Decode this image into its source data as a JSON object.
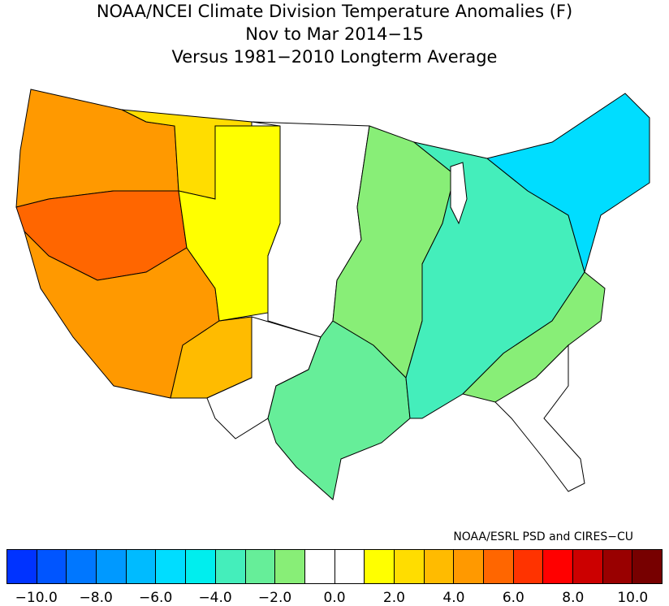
{
  "title": {
    "line1": "NOAA/NCEI Climate Division Temperature Anomalies (F)",
    "line2": "Nov to Mar 2014−15",
    "line3": "Versus 1981−2010 Longterm Average"
  },
  "credit": "NOAA/ESRL PSD and CIRES−CU",
  "legend": {
    "colors": [
      "#0033ff",
      "#0055ff",
      "#0077ff",
      "#0099ff",
      "#00bbff",
      "#00ddff",
      "#00eeee",
      "#44eebb",
      "#66ee99",
      "#88ee77",
      "#ffffff",
      "#ffffff",
      "#ffff00",
      "#ffdd00",
      "#ffbb00",
      "#ff9900",
      "#ff6600",
      "#ff3300",
      "#ff0000",
      "#cc0000",
      "#990000",
      "#770000"
    ],
    "ticks": [
      "−10.0",
      "−8.0",
      "−6.0",
      "−4.0",
      "−2.0",
      "0.0",
      "2.0",
      "4.0",
      "6.0",
      "8.0",
      "10.0"
    ]
  },
  "map_colors": {
    "west_hot": "#ff6600",
    "west_warm": "#ff9900",
    "southwest": "#ffbb00",
    "rockies": "#ffdd00",
    "high_plains": "#ffff00",
    "plains_neutral": "#ffffff",
    "midwest": "#88ee77",
    "south_central": "#66ee99",
    "great_lakes": "#44eebb",
    "northeast": "#00ddff",
    "southeast": "#ffffff"
  }
}
